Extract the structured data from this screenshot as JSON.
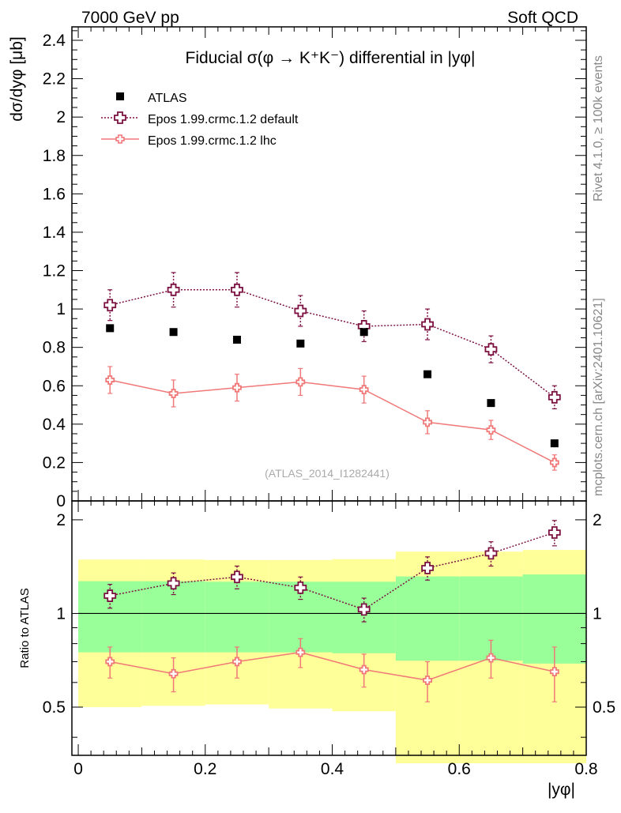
{
  "header": {
    "left": "7000 GeV pp",
    "right": "Soft QCD"
  },
  "side": {
    "rivet": "Rivet 4.1.0, ≥ 100k events",
    "mcplots": "mcplots.cern.ch [arXiv:2401.10621]"
  },
  "chart_data": {
    "type": "scatter",
    "title": "Fiducial σ(φ → K⁺K⁻) differential in |yφ|",
    "xlabel": "|yφ|",
    "ylabel": "dσ/dyφ [μb]",
    "ratio_ylabel": "Ratio to ATLAS",
    "watermark": "(ATLAS_2014_I1282441)",
    "xlim": [
      -0.01,
      0.8
    ],
    "ylim": [
      0,
      2.47
    ],
    "ratio_ylim": [
      0.35,
      2.3
    ],
    "xticks": [
      "0",
      "0.2",
      "0.4",
      "0.6",
      "0.8"
    ],
    "yticks": [
      "0",
      "0.2",
      "0.4",
      "0.6",
      "0.8",
      "1",
      "1.2",
      "1.4",
      "1.6",
      "1.8",
      "2",
      "2.2",
      "2.4"
    ],
    "ratio_yticks": [
      "0.5",
      "1",
      "2"
    ],
    "bin_edges": [
      0.0,
      0.1,
      0.2,
      0.3,
      0.4,
      0.5,
      0.6,
      0.7,
      0.8
    ],
    "x": [
      0.05,
      0.15,
      0.25,
      0.35,
      0.45,
      0.55,
      0.65,
      0.75
    ],
    "series": [
      {
        "name": "ATLAS",
        "values": [
          0.9,
          0.88,
          0.84,
          0.82,
          0.88,
          0.66,
          0.51,
          0.3
        ]
      },
      {
        "name": "Epos 1.99.crmc.1.2 default",
        "values": [
          1.02,
          1.1,
          1.1,
          0.99,
          0.91,
          0.92,
          0.79,
          0.54
        ],
        "errors": [
          0.08,
          0.09,
          0.09,
          0.08,
          0.08,
          0.08,
          0.07,
          0.06
        ]
      },
      {
        "name": "Epos 1.99.crmc.1.2 lhc",
        "values": [
          0.63,
          0.56,
          0.59,
          0.62,
          0.58,
          0.41,
          0.37,
          0.2
        ],
        "errors": [
          0.07,
          0.07,
          0.07,
          0.07,
          0.07,
          0.06,
          0.05,
          0.04
        ]
      }
    ],
    "ratio_series": [
      {
        "name": "Epos 1.99.crmc.1.2 default",
        "values": [
          1.14,
          1.25,
          1.31,
          1.21,
          1.03,
          1.4,
          1.56,
          1.82
        ],
        "errors": [
          0.1,
          0.1,
          0.11,
          0.1,
          0.09,
          0.12,
          0.14,
          0.17
        ]
      },
      {
        "name": "Epos 1.99.crmc.1.2 lhc",
        "values": [
          0.7,
          0.64,
          0.7,
          0.75,
          0.66,
          0.61,
          0.72,
          0.65
        ],
        "errors": [
          0.08,
          0.08,
          0.08,
          0.08,
          0.08,
          0.09,
          0.1,
          0.13
        ]
      }
    ],
    "ratio_bands": {
      "inner_lo": [
        0.75,
        0.75,
        0.75,
        0.75,
        0.745,
        0.705,
        0.705,
        0.69
      ],
      "inner_hi": [
        1.27,
        1.27,
        1.265,
        1.265,
        1.265,
        1.315,
        1.315,
        1.335
      ],
      "outer_lo": [
        0.5,
        0.505,
        0.51,
        0.495,
        0.485,
        0.33,
        0.33,
        0.33
      ],
      "outer_hi": [
        1.49,
        1.49,
        1.485,
        1.485,
        1.495,
        1.58,
        1.58,
        1.6
      ]
    },
    "colors": {
      "data": "#000000",
      "default": "#7b1040",
      "lhc": "#f07878",
      "band_inner": "#99ff99",
      "band_outer": "#ffff99"
    }
  }
}
